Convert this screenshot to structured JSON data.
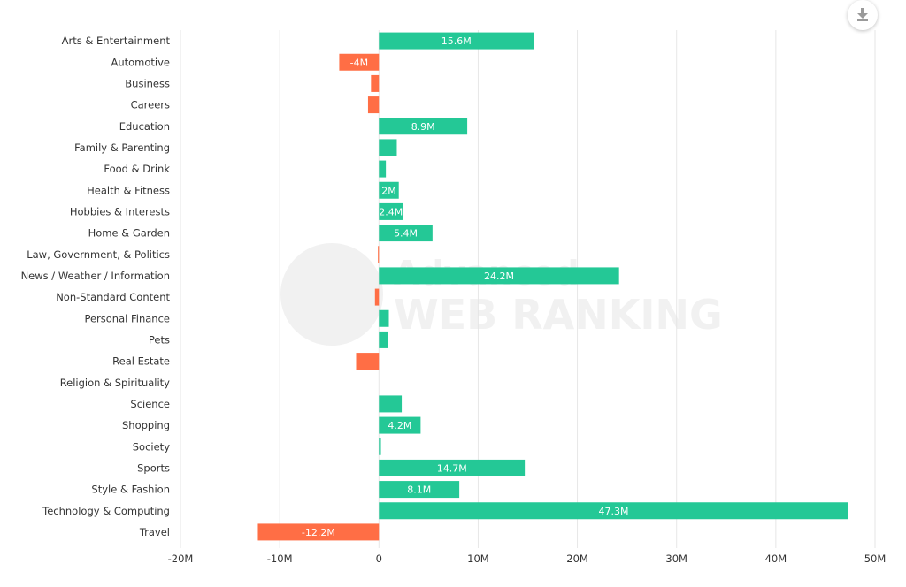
{
  "chart_data": {
    "type": "bar",
    "orientation": "horizontal",
    "categories": [
      "Arts & Entertainment",
      "Automotive",
      "Business",
      "Careers",
      "Education",
      "Family & Parenting",
      "Food & Drink",
      "Health & Fitness",
      "Hobbies & Interests",
      "Home & Garden",
      "Law, Government, & Politics",
      "News / Weather / Information",
      "Non-Standard Content",
      "Personal Finance",
      "Pets",
      "Real Estate",
      "Religion & Spirituality",
      "Science",
      "Shopping",
      "Society",
      "Sports",
      "Style & Fashion",
      "Technology & Computing",
      "Travel"
    ],
    "values": [
      15.6,
      -4,
      -0.8,
      -1.1,
      8.9,
      1.8,
      0.7,
      2,
      2.4,
      5.4,
      -0.1,
      24.2,
      -0.4,
      1,
      0.9,
      -2.3,
      0,
      2.3,
      4.2,
      0.2,
      14.7,
      8.1,
      47.3,
      -12.2
    ],
    "data_labels": [
      "15.6M",
      "-4M",
      "",
      "",
      "8.9M",
      "",
      "",
      "2M",
      "2.4M",
      "5.4M",
      "",
      "24.2M",
      "",
      "",
      "",
      "",
      "",
      "",
      "4.2M",
      "",
      "14.7M",
      "8.1M",
      "47.3M",
      "-12.2M"
    ],
    "unit": "M",
    "xlim": [
      -20,
      50
    ],
    "ticks": [
      -20,
      -10,
      0,
      10,
      20,
      30,
      40,
      50
    ],
    "tick_labels": [
      "-20M",
      "-10M",
      "0",
      "10M",
      "20M",
      "30M",
      "40M",
      "50M"
    ],
    "grid": true,
    "colors": {
      "positive": "#24c896",
      "negative": "#ff6e45",
      "grid": "#e6e6e6"
    },
    "title": "",
    "xlabel": "",
    "ylabel": ""
  },
  "watermark": {
    "line1": "Advanced",
    "line2": "WEB RANKING"
  },
  "toolbar": {
    "download_icon": "download-icon"
  }
}
